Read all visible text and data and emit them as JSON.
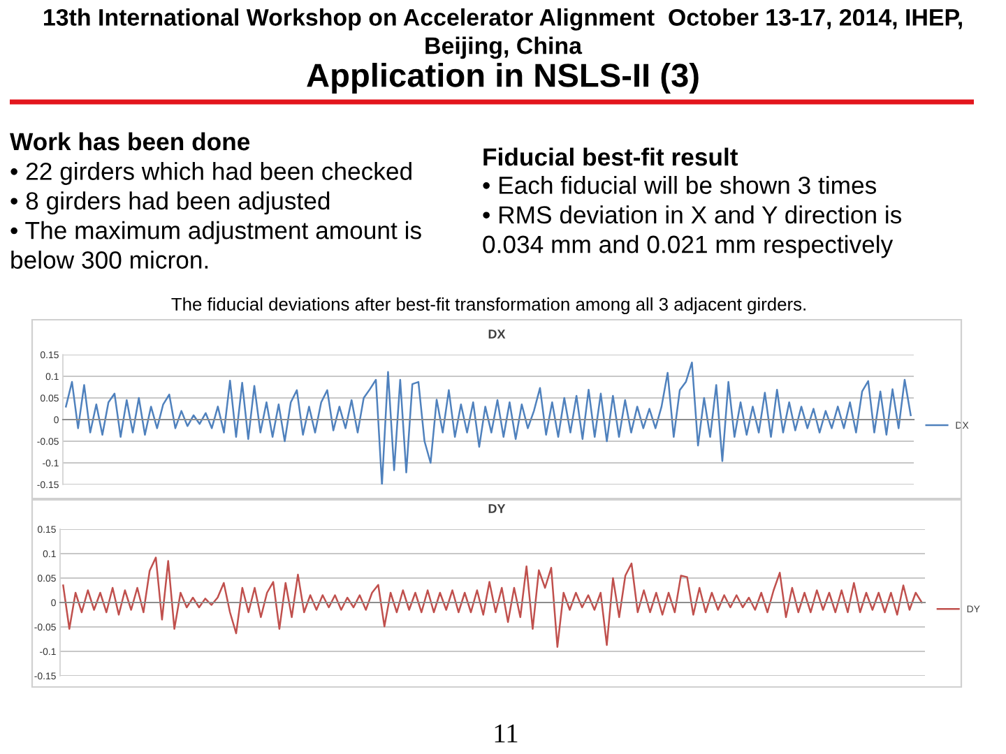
{
  "chart_data": [
    {
      "type": "other",
      "subtitle": "13th International Workshop on Accelerator Alignment  October 13-17, 2014, IHEP,\nBeijing, China",
      "title": "Application in NSLS-II (3)",
      "annotations": [
        "Work has been done",
        "• 22 girders which had been checked\n• 8 girders had been adjusted\n• The maximum adjustment amount is\nbelow 300 micron.",
        "Fiducial best-fit result",
        "• Each fiducial will be shown 3 times\n• RMS deviation in X and Y direction is\n0.034 mm and 0.021 mm respectively",
        "The fiducial deviations after best-fit transformation among all 3 adjacent girders.",
        "11"
      ]
    },
    {
      "type": "line",
      "title": "DX",
      "grid": "y",
      "legend": "right",
      "ylim": [
        -0.15,
        0.15
      ],
      "yticks": [
        -0.15,
        -0.1,
        -0.05,
        0,
        0.05,
        0.1,
        0.15
      ],
      "categories": [
        null,
        null,
        null,
        null,
        null,
        null,
        null,
        null,
        null,
        null,
        null,
        null,
        null,
        null,
        null,
        null,
        null,
        null,
        null,
        null,
        null,
        null,
        null,
        null,
        null,
        null,
        null,
        null,
        null,
        null,
        null,
        null,
        null,
        null,
        null,
        null,
        null,
        null,
        null,
        null,
        null,
        null,
        null,
        null,
        null,
        null,
        null,
        null,
        null,
        null,
        null,
        null,
        null,
        null,
        null,
        null,
        null,
        null,
        null,
        null,
        null,
        null,
        null,
        null,
        null,
        null,
        null,
        null,
        null,
        null,
        null,
        null,
        null,
        null,
        null,
        null,
        null,
        null,
        null,
        null,
        null,
        null,
        null,
        null,
        null,
        null,
        null,
        null,
        null,
        null,
        null,
        null,
        null,
        null,
        null,
        null,
        null,
        null,
        null,
        null,
        null,
        null,
        null,
        null,
        null,
        null,
        null,
        null,
        null,
        null,
        null,
        null,
        null,
        null,
        null,
        null,
        null,
        null,
        null,
        null,
        null,
        null,
        null,
        null,
        null,
        null,
        null,
        null,
        null,
        null,
        null,
        null,
        null,
        null,
        null,
        null,
        null,
        null,
        null,
        null
      ],
      "series": [
        {
          "name": "DX",
          "color": "#4f81bd",
          "values": [
            0.03,
            0.087,
            -0.02,
            0.08,
            -0.03,
            0.035,
            -0.035,
            0.04,
            0.06,
            -0.04,
            0.045,
            -0.03,
            0.05,
            -0.035,
            0.03,
            -0.02,
            0.035,
            0.058,
            -0.02,
            0.02,
            -0.015,
            0.01,
            -0.01,
            0.015,
            -0.02,
            0.03,
            -0.03,
            0.09,
            -0.04,
            0.085,
            -0.045,
            0.078,
            -0.03,
            0.04,
            -0.04,
            0.035,
            -0.05,
            0.04,
            0.068,
            -0.035,
            0.03,
            -0.03,
            0.04,
            0.068,
            -0.025,
            0.03,
            -0.02,
            0.045,
            -0.03,
            0.05,
            0.07,
            0.092,
            -0.15,
            0.11,
            -0.117,
            0.092,
            -0.122,
            0.082,
            0.087,
            -0.05,
            -0.1,
            0.046,
            -0.03,
            0.068,
            -0.04,
            0.035,
            -0.03,
            0.04,
            -0.063,
            0.03,
            -0.03,
            0.045,
            -0.04,
            0.04,
            -0.045,
            0.035,
            -0.02,
            0.02,
            0.073,
            -0.035,
            0.04,
            -0.04,
            0.05,
            -0.03,
            0.055,
            -0.045,
            0.069,
            -0.04,
            0.06,
            -0.05,
            0.055,
            -0.04,
            0.045,
            -0.03,
            0.03,
            -0.02,
            0.025,
            -0.02,
            0.03,
            0.108,
            -0.04,
            0.068,
            0.087,
            0.132,
            -0.06,
            0.05,
            -0.04,
            0.08,
            -0.096,
            0.087,
            -0.04,
            0.04,
            -0.035,
            0.03,
            -0.03,
            0.062,
            -0.04,
            0.069,
            -0.03,
            0.04,
            -0.025,
            0.03,
            -0.02,
            0.025,
            -0.03,
            0.02,
            -0.02,
            0.03,
            -0.02,
            0.04,
            -0.03,
            0.065,
            0.089,
            -0.03,
            0.065,
            -0.035,
            0.07,
            -0.02,
            0.092,
            0.01
          ]
        }
      ]
    },
    {
      "type": "line",
      "title": "DY",
      "grid": "y",
      "legend": "right",
      "ylim": [
        -0.15,
        0.15
      ],
      "yticks": [
        -0.15,
        -0.1,
        -0.05,
        0,
        0.05,
        0.1,
        0.15
      ],
      "categories": [
        null,
        null,
        null,
        null,
        null,
        null,
        null,
        null,
        null,
        null,
        null,
        null,
        null,
        null,
        null,
        null,
        null,
        null,
        null,
        null,
        null,
        null,
        null,
        null,
        null,
        null,
        null,
        null,
        null,
        null,
        null,
        null,
        null,
        null,
        null,
        null,
        null,
        null,
        null,
        null,
        null,
        null,
        null,
        null,
        null,
        null,
        null,
        null,
        null,
        null,
        null,
        null,
        null,
        null,
        null,
        null,
        null,
        null,
        null,
        null,
        null,
        null,
        null,
        null,
        null,
        null,
        null,
        null,
        null,
        null,
        null,
        null,
        null,
        null,
        null,
        null,
        null,
        null,
        null,
        null,
        null,
        null,
        null,
        null,
        null,
        null,
        null,
        null,
        null,
        null,
        null,
        null,
        null,
        null,
        null,
        null,
        null,
        null,
        null,
        null,
        null,
        null,
        null,
        null,
        null,
        null,
        null,
        null,
        null,
        null,
        null,
        null,
        null,
        null,
        null,
        null,
        null,
        null,
        null,
        null,
        null,
        null,
        null,
        null,
        null,
        null,
        null,
        null,
        null,
        null,
        null,
        null,
        null,
        null,
        null,
        null,
        null,
        null,
        null,
        null
      ],
      "series": [
        {
          "name": "DY",
          "color": "#c0504d",
          "values": [
            0.035,
            -0.054,
            0.02,
            -0.02,
            0.025,
            -0.015,
            0.02,
            -0.02,
            0.03,
            -0.025,
            0.025,
            -0.015,
            0.03,
            -0.02,
            0.065,
            0.092,
            -0.035,
            0.085,
            -0.054,
            0.02,
            -0.01,
            0.01,
            -0.01,
            0.008,
            -0.005,
            0.01,
            0.04,
            -0.02,
            -0.063,
            0.03,
            -0.02,
            0.03,
            -0.03,
            0.02,
            0.042,
            -0.054,
            0.04,
            -0.03,
            0.057,
            -0.02,
            0.015,
            -0.015,
            0.015,
            -0.01,
            0.015,
            -0.015,
            0.01,
            -0.01,
            0.015,
            -0.015,
            0.02,
            0.036,
            -0.049,
            0.02,
            -0.02,
            0.025,
            -0.015,
            0.02,
            -0.02,
            0.025,
            -0.02,
            0.02,
            -0.015,
            0.025,
            -0.02,
            0.02,
            -0.02,
            0.025,
            -0.025,
            0.042,
            -0.02,
            0.03,
            -0.04,
            0.03,
            -0.03,
            0.074,
            -0.054,
            0.066,
            0.03,
            0.071,
            -0.091,
            0.02,
            -0.015,
            0.02,
            -0.01,
            0.015,
            -0.015,
            0.02,
            -0.087,
            0.05,
            -0.03,
            0.055,
            0.08,
            -0.02,
            0.025,
            -0.02,
            0.02,
            -0.025,
            0.02,
            -0.02,
            0.055,
            0.052,
            -0.025,
            0.03,
            -0.02,
            0.02,
            -0.015,
            0.015,
            -0.01,
            0.015,
            -0.01,
            0.01,
            -0.015,
            0.02,
            -0.02,
            0.025,
            0.061,
            -0.03,
            0.03,
            -0.02,
            0.02,
            -0.02,
            0.025,
            -0.015,
            0.02,
            -0.02,
            0.025,
            -0.02,
            0.04,
            -0.02,
            0.02,
            -0.015,
            0.02,
            -0.02,
            0.02,
            -0.025,
            0.035,
            -0.015,
            0.02,
            0
          ]
        }
      ]
    }
  ]
}
